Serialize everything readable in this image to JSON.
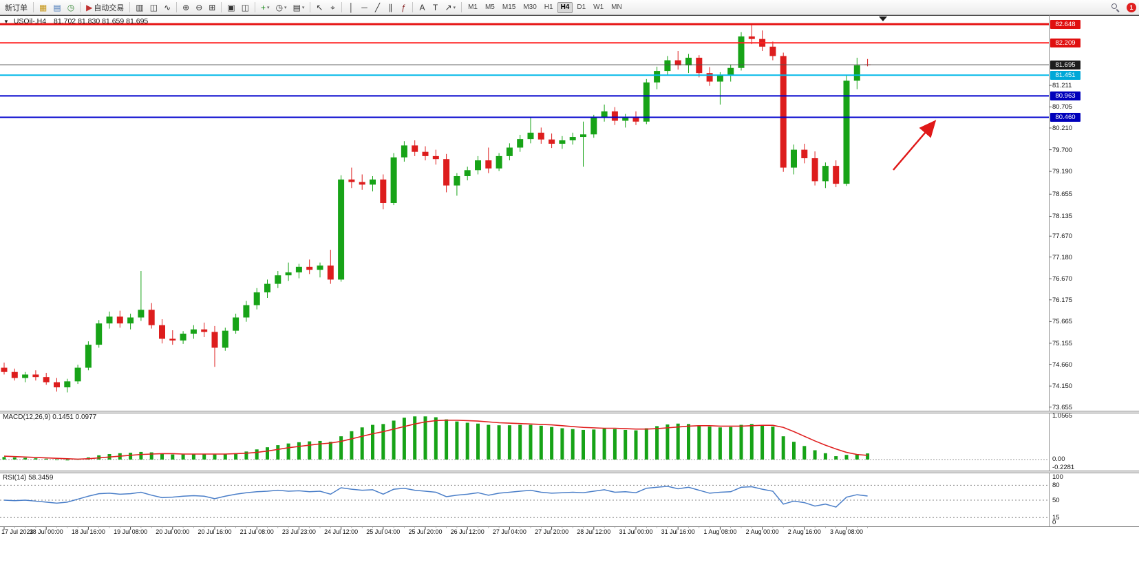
{
  "toolbar": {
    "dropdown_glyph": "▾",
    "notification_count": "1",
    "groups": [
      {
        "items": [
          {
            "name": "new-order-button",
            "label": "新订单"
          }
        ]
      },
      {
        "items": [
          {
            "name": "market-watch-icon",
            "glyph": "▦",
            "color": "#c89a20"
          },
          {
            "name": "data-window-icon",
            "glyph": "▤",
            "color": "#4878b8"
          },
          {
            "name": "terminal-icon",
            "glyph": "◷",
            "color": "#3a8a3a"
          }
        ]
      },
      {
        "items": [
          {
            "name": "autotrading-button",
            "label": "自动交易",
            "glyph": "▶",
            "color": "#c03030"
          }
        ]
      },
      {
        "items": [
          {
            "name": "bar-chart-icon",
            "glyph": "▥"
          },
          {
            "name": "candlestick-chart-icon",
            "glyph": "◫"
          },
          {
            "name": "line-chart-icon",
            "glyph": "∿"
          }
        ]
      },
      {
        "items": [
          {
            "name": "zoom-in-icon",
            "glyph": "⊕"
          },
          {
            "name": "zoom-out-icon",
            "glyph": "⊖"
          },
          {
            "name": "tile-windows-icon",
            "glyph": "⊞"
          }
        ]
      },
      {
        "items": [
          {
            "name": "cascade-windows-icon",
            "glyph": "▣"
          },
          {
            "name": "arrange-windows-icon",
            "glyph": "◫"
          }
        ]
      },
      {
        "items": [
          {
            "name": "add-indicator-icon",
            "glyph": "+",
            "color": "#1a8a1a",
            "dropdown": true
          },
          {
            "name": "period-icon",
            "glyph": "◷",
            "dropdown": true
          },
          {
            "name": "template-icon",
            "glyph": "▤",
            "dropdown": true
          }
        ]
      },
      {
        "items": [
          {
            "name": "cursor-icon",
            "glyph": "↖"
          },
          {
            "name": "crosshair-icon",
            "glyph": "⌖"
          }
        ]
      },
      {
        "items": [
          {
            "name": "vertical-line-icon",
            "glyph": "│"
          },
          {
            "name": "horizontal-line-icon",
            "glyph": "─"
          },
          {
            "name": "trendline-icon",
            "glyph": "╱"
          },
          {
            "name": "equidistant-channel-icon",
            "glyph": "∥"
          },
          {
            "name": "fibonacci-icon",
            "glyph": "ƒ",
            "color": "#8a2a2a"
          }
        ]
      },
      {
        "items": [
          {
            "name": "text-icon",
            "glyph": "A"
          },
          {
            "name": "text-label-icon",
            "glyph": "T"
          },
          {
            "name": "arrows-icon",
            "glyph": "↗",
            "dropdown": true
          }
        ]
      }
    ],
    "timeframes": {
      "items": [
        "M1",
        "M5",
        "M15",
        "M30",
        "H1",
        "H4",
        "D1",
        "W1",
        "MN"
      ],
      "active": "H4"
    }
  },
  "chart": {
    "collapse_icon": "▼",
    "title": "USOil-,H4",
    "ohlc_text": "81.702 81.830 81.659 81.695",
    "current_price": "81.695",
    "price_levels": [
      {
        "text": "82.648",
        "price": 82.648,
        "line_color": "#e61010",
        "line_width": 3,
        "badge_bg": "#e01010"
      },
      {
        "text": "82.209",
        "price": 82.209,
        "line_color": "#ff2222",
        "line_width": 2,
        "badge_bg": "#e01010"
      },
      {
        "text": "81.695",
        "price": 81.695,
        "line_color": "#505050",
        "line_width": 1,
        "badge_bg": "#1c1c1c"
      },
      {
        "text": "81.451",
        "price": 81.451,
        "line_color": "#00b8e8",
        "line_width": 2,
        "badge_bg": "#00a8d8"
      },
      {
        "text": "80.963",
        "price": 80.963,
        "line_color": "#0000cc",
        "line_width": 2,
        "badge_bg": "#0000bb"
      },
      {
        "text": "80.460",
        "price": 80.46,
        "line_color": "#0000cc",
        "line_width": 2,
        "badge_bg": "#0000bb"
      }
    ],
    "axis_ticks": [
      "81.211",
      "80.705",
      "80.210",
      "79.700",
      "79.190",
      "78.655",
      "78.135",
      "77.670",
      "77.180",
      "76.670",
      "76.175",
      "75.665",
      "75.155",
      "74.660",
      "74.150",
      "73.655"
    ]
  },
  "indicators": {
    "macd": {
      "label": "MACD(12,26,9)",
      "values": "0.1451 0.0977",
      "axis": [
        "1.0565",
        "0.00",
        "-0.2281"
      ]
    },
    "rsi": {
      "label": "RSI(14)",
      "value": "58.3459",
      "axis": [
        "100",
        "80",
        "50",
        "15",
        "0"
      ],
      "levels": [
        80,
        50,
        15
      ]
    }
  },
  "time_axis": {
    "labels": [
      "17 Jul 2023",
      "18 Jul 00:00",
      "18 Jul 16:00",
      "19 Jul 08:00",
      "20 Jul 00:00",
      "20 Jul 16:00",
      "21 Jul 08:00",
      "23 Jul 23:00",
      "24 Jul 12:00",
      "25 Jul 04:00",
      "25 Jul 20:00",
      "26 Jul 12:00",
      "27 Jul 04:00",
      "27 Jul 20:00",
      "28 Jul 12:00",
      "31 Jul 00:00",
      "31 Jul 16:00",
      "1 Aug 08:00",
      "2 Aug 00:00",
      "2 Aug 16:00",
      "3 Aug 08:00"
    ],
    "candles_per_label": 4
  },
  "colors": {
    "candle_up": "#17a317",
    "candle_down": "#dd1d1d",
    "macd_hist": "#17a317",
    "macd_signal": "#e02020",
    "rsi_line": "#4a7ec8",
    "arrow": "#e01818"
  },
  "chart_data": {
    "type": "candlestick",
    "symbol": "USOil",
    "timeframe": "H4",
    "y_axis_range": [
      73.655,
      82.86
    ],
    "levels": [
      82.648,
      82.209,
      81.695,
      81.451,
      80.963,
      80.46
    ],
    "ohlc": [
      [
        74.58,
        74.7,
        74.42,
        74.48
      ],
      [
        74.48,
        74.56,
        74.28,
        74.34
      ],
      [
        74.34,
        74.48,
        74.24,
        74.42
      ],
      [
        74.42,
        74.52,
        74.28,
        74.36
      ],
      [
        74.36,
        74.46,
        74.18,
        74.24
      ],
      [
        74.24,
        74.34,
        74.02,
        74.12
      ],
      [
        74.12,
        74.32,
        74.0,
        74.26
      ],
      [
        74.26,
        74.65,
        74.2,
        74.58
      ],
      [
        74.58,
        75.2,
        74.52,
        75.12
      ],
      [
        75.12,
        75.7,
        75.05,
        75.62
      ],
      [
        75.62,
        75.9,
        75.5,
        75.78
      ],
      [
        75.78,
        75.92,
        75.52,
        75.62
      ],
      [
        75.62,
        75.85,
        75.48,
        75.76
      ],
      [
        75.76,
        76.85,
        75.68,
        75.94
      ],
      [
        75.94,
        76.1,
        75.5,
        75.58
      ],
      [
        75.58,
        75.72,
        75.15,
        75.26
      ],
      [
        75.26,
        75.46,
        75.12,
        75.22
      ],
      [
        75.22,
        75.44,
        75.14,
        75.38
      ],
      [
        75.38,
        75.58,
        75.26,
        75.48
      ],
      [
        75.48,
        75.64,
        75.3,
        75.42
      ],
      [
        75.42,
        75.56,
        74.6,
        75.05
      ],
      [
        75.05,
        75.52,
        74.98,
        75.45
      ],
      [
        75.45,
        75.85,
        75.38,
        75.76
      ],
      [
        75.76,
        76.15,
        75.66,
        76.05
      ],
      [
        76.05,
        76.45,
        75.95,
        76.35
      ],
      [
        76.35,
        76.65,
        76.22,
        76.55
      ],
      [
        76.55,
        76.85,
        76.45,
        76.75
      ],
      [
        76.75,
        77.05,
        76.62,
        76.82
      ],
      [
        76.82,
        77.02,
        76.68,
        76.95
      ],
      [
        76.95,
        77.12,
        76.78,
        76.88
      ],
      [
        76.88,
        77.05,
        76.7,
        76.98
      ],
      [
        76.98,
        77.35,
        76.55,
        76.65
      ],
      [
        76.65,
        79.1,
        76.6,
        79.0
      ],
      [
        79.0,
        79.28,
        78.8,
        78.94
      ],
      [
        78.94,
        79.12,
        78.76,
        78.88
      ],
      [
        78.88,
        79.08,
        78.72,
        79.0
      ],
      [
        79.0,
        79.12,
        78.3,
        78.45
      ],
      [
        78.45,
        79.62,
        78.4,
        79.52
      ],
      [
        79.52,
        79.9,
        79.42,
        79.8
      ],
      [
        79.8,
        79.92,
        79.55,
        79.65
      ],
      [
        79.65,
        79.78,
        79.45,
        79.55
      ],
      [
        79.55,
        79.7,
        79.35,
        79.48
      ],
      [
        79.48,
        79.6,
        78.7,
        78.86
      ],
      [
        78.86,
        79.15,
        78.62,
        79.08
      ],
      [
        79.08,
        79.3,
        78.98,
        79.22
      ],
      [
        79.22,
        79.55,
        79.12,
        79.45
      ],
      [
        79.45,
        79.75,
        79.15,
        79.26
      ],
      [
        79.26,
        79.62,
        79.2,
        79.55
      ],
      [
        79.55,
        79.85,
        79.45,
        79.75
      ],
      [
        79.75,
        80.05,
        79.65,
        79.95
      ],
      [
        79.95,
        80.46,
        79.85,
        80.1
      ],
      [
        80.1,
        80.22,
        79.84,
        79.94
      ],
      [
        79.94,
        80.08,
        79.74,
        79.84
      ],
      [
        79.84,
        80.02,
        79.72,
        79.92
      ],
      [
        79.92,
        80.1,
        79.82,
        80.0
      ],
      [
        80.0,
        80.36,
        79.3,
        80.06
      ],
      [
        80.06,
        80.52,
        79.98,
        80.46
      ],
      [
        80.46,
        80.76,
        80.36,
        80.6
      ],
      [
        80.6,
        80.7,
        80.28,
        80.38
      ],
      [
        80.38,
        80.54,
        80.22,
        80.46
      ],
      [
        80.46,
        80.6,
        80.28,
        80.36
      ],
      [
        80.36,
        81.36,
        80.3,
        81.28
      ],
      [
        81.28,
        81.65,
        81.12,
        81.55
      ],
      [
        81.55,
        81.9,
        81.45,
        81.8
      ],
      [
        81.8,
        82.02,
        81.58,
        81.68
      ],
      [
        81.68,
        81.95,
        81.5,
        81.86
      ],
      [
        81.86,
        81.92,
        81.4,
        81.5
      ],
      [
        81.5,
        81.64,
        81.2,
        81.3
      ],
      [
        81.3,
        81.52,
        80.76,
        81.44
      ],
      [
        81.44,
        81.7,
        81.3,
        81.62
      ],
      [
        81.62,
        82.46,
        81.56,
        82.36
      ],
      [
        82.36,
        82.65,
        82.18,
        82.3
      ],
      [
        82.3,
        82.5,
        82.02,
        82.12
      ],
      [
        82.12,
        82.24,
        81.8,
        81.9
      ],
      [
        81.9,
        81.98,
        79.18,
        79.28
      ],
      [
        79.28,
        79.82,
        79.12,
        79.7
      ],
      [
        79.7,
        79.84,
        79.38,
        79.5
      ],
      [
        79.5,
        79.66,
        78.86,
        78.96
      ],
      [
        78.96,
        79.4,
        78.8,
        79.32
      ],
      [
        79.32,
        79.45,
        78.82,
        78.9
      ],
      [
        78.9,
        81.45,
        78.85,
        81.32
      ],
      [
        81.32,
        81.86,
        81.12,
        81.68
      ],
      [
        81.702,
        81.83,
        81.659,
        81.695
      ]
    ],
    "macd_hist": [
      0.06,
      0.05,
      0.04,
      0.03,
      0.02,
      0.0,
      -0.02,
      0.01,
      0.05,
      0.1,
      0.13,
      0.15,
      0.16,
      0.18,
      0.17,
      0.14,
      0.12,
      0.12,
      0.13,
      0.13,
      0.12,
      0.13,
      0.15,
      0.19,
      0.24,
      0.29,
      0.34,
      0.38,
      0.41,
      0.43,
      0.44,
      0.42,
      0.55,
      0.67,
      0.76,
      0.82,
      0.84,
      0.92,
      0.99,
      1.02,
      1.02,
      1.0,
      0.95,
      0.9,
      0.87,
      0.85,
      0.82,
      0.81,
      0.81,
      0.82,
      0.82,
      0.8,
      0.77,
      0.74,
      0.72,
      0.7,
      0.71,
      0.73,
      0.72,
      0.7,
      0.69,
      0.74,
      0.79,
      0.83,
      0.85,
      0.84,
      0.81,
      0.78,
      0.76,
      0.77,
      0.82,
      0.84,
      0.82,
      0.78,
      0.55,
      0.42,
      0.32,
      0.22,
      0.15,
      0.08,
      0.11,
      0.13,
      0.145
    ],
    "macd_signal": [
      0.08,
      0.07,
      0.06,
      0.05,
      0.04,
      0.03,
      0.02,
      0.01,
      0.02,
      0.04,
      0.06,
      0.08,
      0.1,
      0.12,
      0.13,
      0.14,
      0.14,
      0.13,
      0.13,
      0.13,
      0.13,
      0.13,
      0.14,
      0.15,
      0.17,
      0.2,
      0.24,
      0.28,
      0.31,
      0.34,
      0.37,
      0.39,
      0.43,
      0.49,
      0.55,
      0.61,
      0.66,
      0.72,
      0.78,
      0.84,
      0.89,
      0.92,
      0.93,
      0.93,
      0.92,
      0.91,
      0.89,
      0.87,
      0.86,
      0.85,
      0.84,
      0.83,
      0.82,
      0.8,
      0.78,
      0.76,
      0.75,
      0.74,
      0.74,
      0.73,
      0.72,
      0.72,
      0.73,
      0.75,
      0.77,
      0.79,
      0.8,
      0.8,
      0.79,
      0.79,
      0.79,
      0.8,
      0.81,
      0.81,
      0.76,
      0.66,
      0.55,
      0.44,
      0.34,
      0.25,
      0.17,
      0.12,
      0.098
    ],
    "rsi": [
      50,
      49,
      50,
      48,
      46,
      44,
      46,
      52,
      58,
      63,
      64,
      62,
      63,
      66,
      60,
      55,
      56,
      58,
      59,
      58,
      53,
      58,
      62,
      65,
      67,
      68,
      70,
      68,
      69,
      67,
      68,
      62,
      75,
      72,
      70,
      71,
      62,
      72,
      74,
      70,
      68,
      66,
      57,
      60,
      62,
      65,
      60,
      64,
      66,
      68,
      70,
      66,
      64,
      65,
      66,
      65,
      68,
      71,
      66,
      67,
      65,
      74,
      76,
      78,
      73,
      76,
      70,
      64,
      66,
      67,
      76,
      77,
      72,
      68,
      42,
      48,
      45,
      38,
      42,
      36,
      56,
      61,
      58.3
    ],
    "x_labels": [
      "17 Jul 2023",
      "18 Jul 00:00",
      "18 Jul 16:00",
      "19 Jul 08:00",
      "20 Jul 00:00",
      "20 Jul 16:00",
      "21 Jul 08:00",
      "23 Jul 23:00",
      "24 Jul 12:00",
      "25 Jul 04:00",
      "25 Jul 20:00",
      "26 Jul 12:00",
      "27 Jul 04:00",
      "27 Jul 20:00",
      "28 Jul 12:00",
      "31 Jul 00:00",
      "31 Jul 16:00",
      "1 Aug 08:00",
      "2 Aug 00:00",
      "2 Aug 16:00",
      "3 Aug 08:00"
    ]
  }
}
